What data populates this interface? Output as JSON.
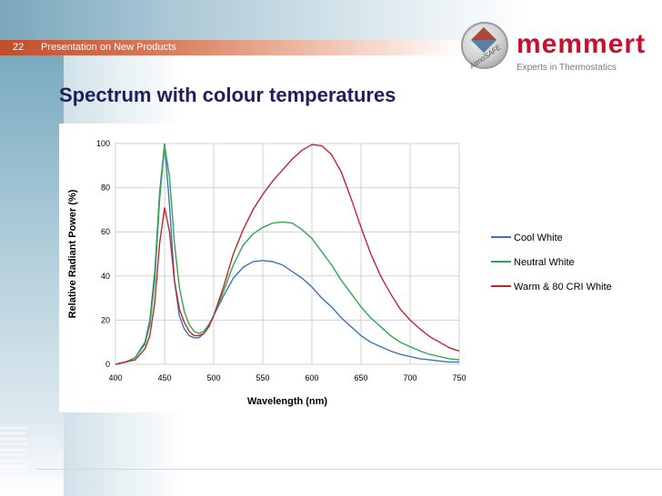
{
  "header": {
    "slide_number": "22",
    "text": "Presentation on New Products"
  },
  "slide_title": "Spectrum with colour temperatures",
  "logo": {
    "word": "memmert",
    "tagline": "Experts in Thermostatics",
    "globe_text": "AtmoSAFE"
  },
  "colors": {
    "title": "#1f1f5c",
    "bar": "#c24d2c",
    "cool": "#3a76b7",
    "neutral": "#2fa84f",
    "warm": "#c0262e"
  },
  "chart_data": {
    "type": "line",
    "title": "",
    "xlabel": "Wavelength (nm)",
    "ylabel": "Relative Radiant Power (%)",
    "xlim": [
      400,
      750
    ],
    "ylim": [
      0,
      100
    ],
    "xticks": [
      400,
      450,
      500,
      550,
      600,
      650,
      700,
      750
    ],
    "yticks": [
      0,
      20,
      40,
      60,
      80,
      100
    ],
    "grid": true,
    "legend_position": "right",
    "series": [
      {
        "name": "Cool White",
        "color": "#3a76b7",
        "x": [
          400,
          410,
          420,
          430,
          435,
          440,
          445,
          450,
          455,
          460,
          465,
          470,
          475,
          480,
          485,
          490,
          495,
          500,
          510,
          520,
          530,
          540,
          550,
          560,
          570,
          580,
          590,
          600,
          610,
          620,
          630,
          640,
          650,
          660,
          670,
          680,
          690,
          700,
          710,
          720,
          730,
          740,
          750
        ],
        "y": [
          0,
          1,
          3,
          10,
          20,
          42,
          78,
          100,
          72,
          38,
          22,
          16,
          13,
          12,
          12,
          14,
          17,
          22,
          31,
          39,
          44,
          46.5,
          47,
          46.5,
          45,
          42,
          39,
          35,
          30,
          26,
          21,
          17,
          13,
          10,
          8,
          6,
          4.5,
          3.5,
          2.5,
          2,
          1.5,
          1,
          1
        ]
      },
      {
        "name": "Neutral White",
        "color": "#2fa84f",
        "x": [
          400,
          410,
          420,
          430,
          435,
          440,
          445,
          450,
          455,
          460,
          465,
          470,
          475,
          480,
          485,
          490,
          495,
          500,
          510,
          520,
          530,
          540,
          550,
          560,
          570,
          580,
          590,
          600,
          610,
          620,
          630,
          640,
          650,
          660,
          670,
          680,
          690,
          700,
          710,
          720,
          730,
          740,
          750
        ],
        "y": [
          0,
          1,
          3,
          9,
          18,
          38,
          75,
          99,
          85,
          55,
          35,
          24,
          18,
          15,
          14,
          15,
          18,
          22,
          33,
          45,
          54,
          59,
          62,
          64,
          64.5,
          64,
          61,
          57,
          51,
          45,
          38,
          32,
          26,
          21,
          17,
          13,
          10,
          8,
          6,
          4.5,
          3.5,
          2.5,
          2
        ]
      },
      {
        "name": "Warm & 80 CRI White",
        "color": "#c0262e",
        "x": [
          400,
          410,
          420,
          430,
          435,
          440,
          445,
          450,
          455,
          460,
          465,
          470,
          475,
          480,
          485,
          490,
          495,
          500,
          510,
          520,
          530,
          540,
          550,
          560,
          570,
          580,
          590,
          600,
          610,
          620,
          630,
          640,
          650,
          660,
          670,
          680,
          690,
          700,
          710,
          720,
          730,
          740,
          750
        ],
        "y": [
          0,
          1,
          2,
          7,
          13,
          28,
          55,
          71,
          60,
          38,
          25,
          19,
          15,
          13,
          13,
          14,
          17,
          22,
          35,
          50,
          61,
          70,
          77,
          83,
          88,
          93,
          97,
          99.5,
          99,
          95,
          87,
          75,
          62,
          50,
          40,
          32,
          25,
          20,
          16,
          12.5,
          10,
          7.5,
          6
        ]
      }
    ]
  }
}
